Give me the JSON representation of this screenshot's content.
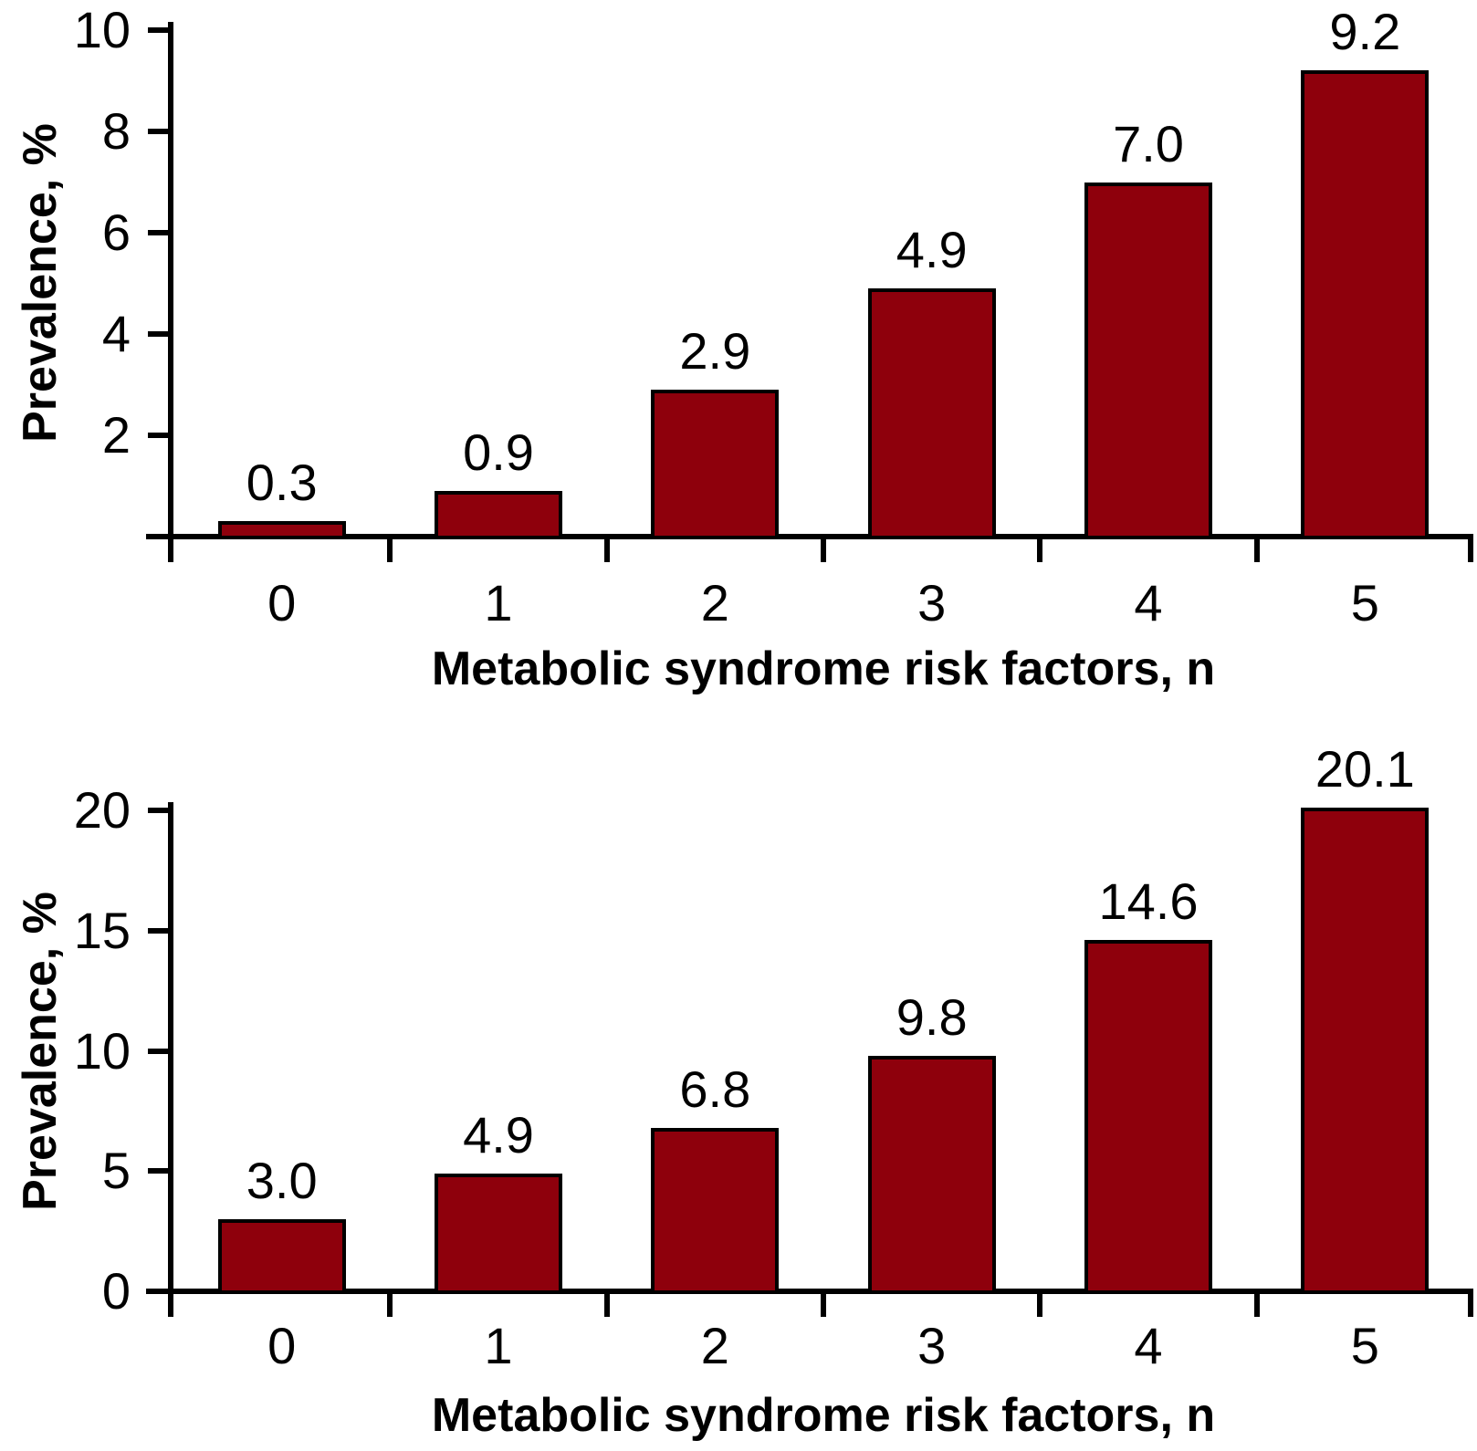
{
  "background": "#FFFFFF",
  "axis_color": "#000000",
  "chart_data": [
    {
      "type": "bar",
      "title": "",
      "xlabel": "Metabolic syndrome risk factors, n",
      "ylabel": "Prevalence, %",
      "categories": [
        "0",
        "1",
        "2",
        "3",
        "4",
        "5"
      ],
      "values": [
        0.3,
        0.9,
        2.9,
        4.9,
        7.0,
        9.2
      ],
      "value_labels": [
        "0.3",
        "0.9",
        "2.9",
        "4.9",
        "7.0",
        "9.2"
      ],
      "ylim": [
        0,
        10
      ],
      "yticks": [
        {
          "value": 0,
          "label": ""
        },
        {
          "value": 2,
          "label": "2"
        },
        {
          "value": 4,
          "label": "4"
        },
        {
          "value": 6,
          "label": "6"
        },
        {
          "value": 8,
          "label": "8"
        },
        {
          "value": 10,
          "label": "10"
        }
      ],
      "grid": false,
      "legend": null,
      "bar_fill": "#8E000C",
      "bar_stroke": "#000000"
    },
    {
      "type": "bar",
      "title": "",
      "xlabel": "Metabolic syndrome risk factors, n",
      "ylabel": "Prevalence, %",
      "categories": [
        "0",
        "1",
        "2",
        "3",
        "4",
        "5"
      ],
      "values": [
        3.0,
        4.9,
        6.8,
        9.8,
        14.6,
        20.1
      ],
      "value_labels": [
        "3.0",
        "4.9",
        "6.8",
        "9.8",
        "14.6",
        "20.1"
      ],
      "ylim": [
        0,
        20
      ],
      "yticks": [
        {
          "value": 0,
          "label": "0"
        },
        {
          "value": 5,
          "label": "5"
        },
        {
          "value": 10,
          "label": "10"
        },
        {
          "value": 15,
          "label": "15"
        },
        {
          "value": 20,
          "label": "20"
        }
      ],
      "grid": false,
      "legend": null,
      "bar_fill": "#8E000C",
      "bar_stroke": "#000000"
    }
  ]
}
